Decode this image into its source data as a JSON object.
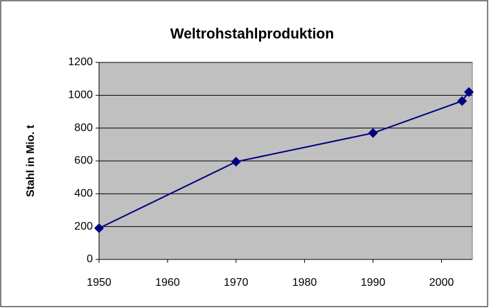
{
  "chart_data": {
    "type": "line",
    "title": "Weltrohstahlproduktion",
    "y_label": "Stahl in Mio. t",
    "x": [
      1950,
      1970,
      1990,
      2003,
      2004
    ],
    "series": [
      {
        "name": "Weltrohstahlproduktion",
        "color": "#000080",
        "values": [
          190,
          595,
          770,
          965,
          1020
        ]
      }
    ],
    "xlim": [
      1950,
      2004
    ],
    "xticks": [
      1950,
      1960,
      1970,
      1980,
      1990,
      2000
    ],
    "ylim": [
      0,
      1200
    ],
    "yticks": [
      0,
      200,
      400,
      600,
      800,
      1000,
      1200
    ],
    "grid": true,
    "plot_background": "#c0c0c0"
  }
}
